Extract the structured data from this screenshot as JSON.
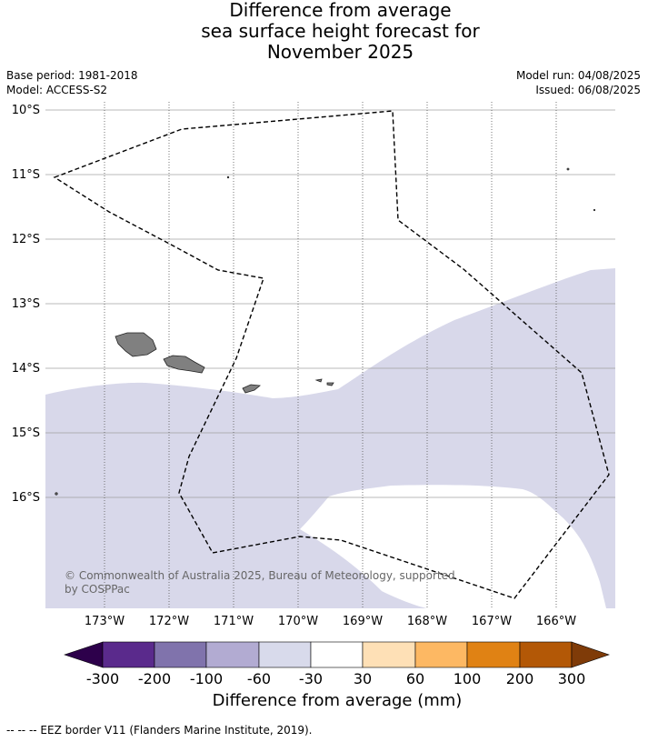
{
  "title_lines": [
    "Difference from average",
    "sea surface height forecast for",
    "November 2025"
  ],
  "meta_left": [
    "Base period: 1981-2018",
    "Model: ACCESS-S2"
  ],
  "meta_right": [
    "Model run: 04/08/2025",
    "Issued: 06/08/2025"
  ],
  "map": {
    "lat_labels": [
      "10°S",
      "11°S",
      "12°S",
      "13°S",
      "14°S",
      "15°S",
      "16°S"
    ],
    "lon_labels": [
      "173°W",
      "172°W",
      "171°W",
      "170°W",
      "169°W",
      "168°W",
      "167°W",
      "166°W"
    ],
    "copyright": "© Commonwealth of Australia 2025, Bureau of Meteorology, supported by COSPPac",
    "colors": {
      "ocean_neutral": "#ffffff",
      "anomaly_-60_-30": "#d8d8ea",
      "land": "#808080",
      "gridline": "#888888"
    }
  },
  "colorbar": {
    "title": "Difference from average (mm)",
    "tick_labels": [
      "-300",
      "-200",
      "-100",
      "-60",
      "-30",
      "30",
      "60",
      "100",
      "200",
      "300"
    ],
    "colors": [
      "#2d004b",
      "#5a2a8c",
      "#8073ac",
      "#b2abd2",
      "#d8daeb",
      "#ffffff",
      "#fee0b6",
      "#fdb863",
      "#e08214",
      "#b35806",
      "#7f3b08"
    ]
  },
  "footer": "--  --  -- EEZ border V11 (Flanders Marine Institute, 2019)."
}
